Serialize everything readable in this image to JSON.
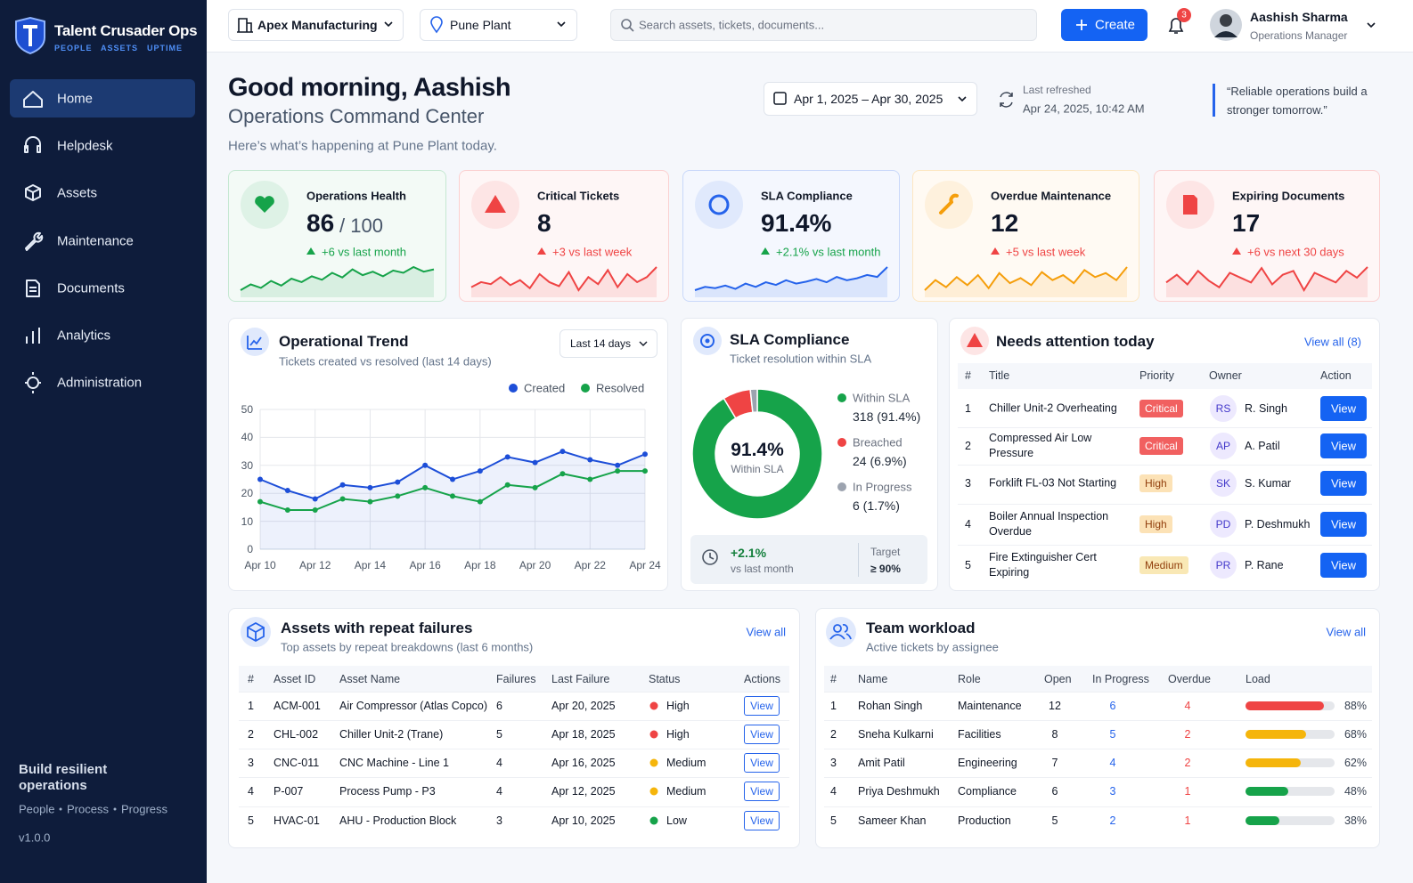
{
  "sidebar": {
    "brand": "Talent Crusader Ops",
    "tagline": [
      "PEOPLE",
      "ASSETS",
      "UPTIME"
    ],
    "nav": [
      "Home",
      "Helpdesk",
      "Assets",
      "Maintenance",
      "Documents",
      "Analytics",
      "Administration"
    ],
    "active": 0,
    "footer": {
      "title": "Build resilient operations",
      "links": [
        "People",
        "Process",
        "Progress"
      ],
      "version": "v1.0.0"
    }
  },
  "topbar": {
    "organization": "Apex Manufacturing",
    "site": "Pune Plant",
    "search_placeholder": "Search assets, tickets, documents...",
    "create": "Create",
    "notifications": 3,
    "user": {
      "name": "Aashish Sharma",
      "role": "Operations Manager"
    }
  },
  "header": {
    "greeting": "Good morning, Aashish",
    "title": "Operations Command Center",
    "description": "Here’s what’s happening at Pune Plant today.",
    "date_range": "Apr 1, 2025 – Apr 30, 2025",
    "refresh_label": "Last refreshed",
    "refresh_time": "Apr 24, 2025, 10:42 AM",
    "quote": "“Reliable operations build a stronger tomorrow.”"
  },
  "kpis": [
    {
      "title": "Operations Health",
      "value": "86",
      "suffix": "/ 100",
      "delta": "+6 vs last month",
      "color": "#16a34a",
      "delta_color": "#16a34a",
      "spark": [
        40,
        45,
        42,
        48,
        44,
        50,
        47,
        52,
        49,
        55,
        51,
        58,
        53,
        56,
        52,
        57,
        55,
        60,
        56,
        58
      ]
    },
    {
      "title": "Critical Tickets",
      "value": "8",
      "delta": "+3 vs last week",
      "color": "#ef4444",
      "delta_color": "#ef4444",
      "spark": [
        45,
        50,
        48,
        55,
        47,
        52,
        44,
        58,
        50,
        46,
        60,
        42,
        55,
        48,
        62,
        45,
        58,
        50,
        55,
        65
      ]
    },
    {
      "title": "SLA Compliance",
      "value": "91.4%",
      "delta": "+2.1% vs last month",
      "color": "#2563eb",
      "delta_color": "#16a34a",
      "spark": [
        35,
        40,
        38,
        42,
        37,
        45,
        40,
        47,
        43,
        50,
        45,
        48,
        52,
        47,
        55,
        50,
        53,
        58,
        55,
        70
      ]
    },
    {
      "title": "Overdue Maintenance",
      "value": "12",
      "delta": "+5 vs last week",
      "color": "#f59e0b",
      "delta_color": "#ef4444",
      "spark": [
        45,
        55,
        48,
        58,
        50,
        60,
        47,
        62,
        52,
        57,
        50,
        63,
        55,
        60,
        52,
        65,
        58,
        62,
        55,
        68
      ]
    },
    {
      "title": "Expiring Documents",
      "value": "17",
      "delta": "+6 vs next 30 days",
      "color": "#ef4444",
      "delta_color": "#ef4444",
      "spark": [
        50,
        58,
        48,
        62,
        52,
        45,
        60,
        55,
        50,
        65,
        48,
        58,
        62,
        42,
        60,
        55,
        50,
        62,
        55,
        66
      ]
    }
  ],
  "trend": {
    "type": "line",
    "title": "Operational Trend",
    "subtitle": "Tickets created vs resolved (last 14 days)",
    "range": "Last 14 days",
    "categories": [
      "Apr 10",
      null,
      "Apr 12",
      null,
      "Apr 14",
      null,
      "Apr 16",
      null,
      "Apr 18",
      null,
      "Apr 20",
      null,
      "Apr 22",
      null,
      "Apr 24"
    ],
    "series": [
      {
        "name": "Created",
        "color": "#1d4ed8",
        "values": [
          25,
          21,
          18,
          23,
          22,
          24,
          30,
          25,
          28,
          33,
          31,
          35,
          32,
          30,
          34
        ]
      },
      {
        "name": "Resolved",
        "color": "#16a34a",
        "values": [
          17,
          14,
          14,
          18,
          17,
          19,
          22,
          19,
          17,
          23,
          22,
          27,
          25,
          28,
          28
        ]
      }
    ],
    "ylim": [
      0,
      50
    ],
    "yticks": [
      0,
      10,
      20,
      30,
      40,
      50
    ],
    "grid": true
  },
  "sla": {
    "type": "donut",
    "title": "SLA Compliance",
    "subtitle": "Ticket resolution within SLA",
    "center_value": "91.4%",
    "center_label": "Within SLA",
    "segments": [
      {
        "name": "Within SLA",
        "value": 318,
        "label": "318 (91.4%)",
        "color": "#16a34a"
      },
      {
        "name": "Breached",
        "value": 24,
        "label": "24 (6.9%)",
        "color": "#ef4444"
      },
      {
        "name": "In Progress",
        "value": 6,
        "label": "6 (1.7%)",
        "color": "#9ca3af"
      }
    ],
    "delta": "+2.1%",
    "delta_label": "vs last month",
    "target_label": "Target",
    "target": "≥ 90%"
  },
  "attention": {
    "title": "Needs attention today",
    "view_all": "View all (8)",
    "columns": [
      "#",
      "Title",
      "Priority",
      "Owner",
      "Action"
    ],
    "rows": [
      {
        "n": 1,
        "title": "Chiller Unit-2 Overheating",
        "priority": "Critical",
        "priority_color": "#ef4444",
        "initials": "RS",
        "owner": "R. Singh",
        "action": "View"
      },
      {
        "n": 2,
        "title": "Compressed Air Low Pressure",
        "priority": "Critical",
        "priority_color": "#ef4444",
        "initials": "AP",
        "owner": "A. Patil",
        "action": "View"
      },
      {
        "n": 3,
        "title": "Forklift FL-03 Not Starting",
        "priority": "High",
        "priority_color": "#f59e0b",
        "initials": "SK",
        "owner": "S. Kumar",
        "action": "View"
      },
      {
        "n": 4,
        "title": "Boiler Annual Inspection Overdue",
        "priority": "High",
        "priority_color": "#f59e0b",
        "initials": "PD",
        "owner": "P. Deshmukh",
        "action": "View"
      },
      {
        "n": 5,
        "title": "Fire Extinguisher Cert Expiring",
        "priority": "Medium",
        "priority_color": "#eab308",
        "initials": "PR",
        "owner": "P. Rane",
        "action": "View"
      }
    ]
  },
  "assets": {
    "title": "Assets with repeat failures",
    "subtitle": "Top assets by repeat breakdowns (last 6 months)",
    "view_all": "View all",
    "columns": [
      "#",
      "Asset ID",
      "Asset Name",
      "Failures",
      "Last Failure",
      "Status",
      "Actions"
    ],
    "rows": [
      {
        "n": 1,
        "id": "ACM-001",
        "name": "Air Compressor (Atlas Copco)",
        "failures": 6,
        "last_failure": "Apr 20, 2025",
        "status": "High",
        "status_color": "#ef4444",
        "action": "View"
      },
      {
        "n": 2,
        "id": "CHL-002",
        "name": "Chiller Unit-2 (Trane)",
        "failures": 5,
        "last_failure": "Apr 18, 2025",
        "status": "High",
        "status_color": "#ef4444",
        "action": "View"
      },
      {
        "n": 3,
        "id": "CNC-011",
        "name": "CNC Machine - Line 1",
        "failures": 4,
        "last_failure": "Apr 16, 2025",
        "status": "Medium",
        "status_color": "#f5b50b",
        "action": "View"
      },
      {
        "n": 4,
        "id": "P-007",
        "name": "Process Pump - P3",
        "failures": 4,
        "last_failure": "Apr 12, 2025",
        "status": "Medium",
        "status_color": "#f5b50b",
        "action": "View"
      },
      {
        "n": 5,
        "id": "HVAC-01",
        "name": "AHU - Production Block",
        "failures": 3,
        "last_failure": "Apr 10, 2025",
        "status": "Low",
        "status_color": "#16a34a",
        "action": "View"
      }
    ]
  },
  "workload": {
    "title": "Team workload",
    "subtitle": "Active tickets by assignee",
    "view_all": "View all",
    "columns": [
      "#",
      "Name",
      "Role",
      "Open",
      "In Progress",
      "Overdue",
      "Load"
    ],
    "rows": [
      {
        "n": 1,
        "name": "Rohan Singh",
        "role": "Maintenance",
        "open": 12,
        "in_progress": 6,
        "overdue": 4,
        "load": {
          "value": 88,
          "label": "88%"
        },
        "color": "#ef4444"
      },
      {
        "n": 2,
        "name": "Sneha Kulkarni",
        "role": "Facilities",
        "open": 8,
        "in_progress": 5,
        "overdue": 2,
        "load": {
          "value": 68,
          "label": "68%"
        },
        "color": "#f5b50b"
      },
      {
        "n": 3,
        "name": "Amit Patil",
        "role": "Engineering",
        "open": 7,
        "in_progress": 4,
        "overdue": 2,
        "load": {
          "value": 62,
          "label": "62%"
        },
        "color": "#f5b50b"
      },
      {
        "n": 4,
        "name": "Priya Deshmukh",
        "role": "Compliance",
        "open": 6,
        "in_progress": 3,
        "overdue": 1,
        "load": {
          "value": 48,
          "label": "48%"
        },
        "color": "#16a34a"
      },
      {
        "n": 5,
        "name": "Sameer Khan",
        "role": "Production",
        "open": 5,
        "in_progress": 2,
        "overdue": 1,
        "load": {
          "value": 38,
          "label": "38%"
        },
        "color": "#16a34a"
      }
    ]
  }
}
